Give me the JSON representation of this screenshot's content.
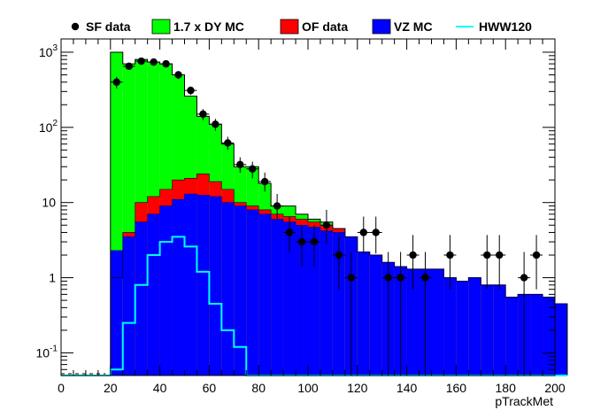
{
  "chart_data": {
    "type": "bar",
    "xlabel": "pTrackMet",
    "ylabel": "",
    "xlim": [
      0,
      200
    ],
    "ylim": [
      0.05,
      1500
    ],
    "yscale": "log",
    "xticks": [
      "0",
      "20",
      "40",
      "60",
      "80",
      "100",
      "120",
      "140",
      "160",
      "180",
      "200"
    ],
    "yticks": [
      {
        "base": "10",
        "exp": "-1",
        "value": 0.1
      },
      {
        "base": "1",
        "exp": "",
        "value": 1
      },
      {
        "base": "10",
        "exp": "",
        "value": 10
      },
      {
        "base": "10",
        "exp": "2",
        "value": 100
      },
      {
        "base": "10",
        "exp": "3",
        "value": 1000
      }
    ],
    "bin_width": 5,
    "bin_start": 20,
    "legend": [
      {
        "label": "SF data",
        "kind": "marker",
        "color": "#000000"
      },
      {
        "label": "1.7 x DY MC",
        "kind": "box",
        "color": "#00ff00"
      },
      {
        "label": "OF data",
        "kind": "box",
        "color": "#ff0000"
      },
      {
        "label": "VZ MC",
        "kind": "box",
        "color": "#0000ff"
      },
      {
        "label": "HWW120",
        "kind": "line",
        "color": "#00ffff"
      }
    ],
    "stack_total": [
      1000,
      700,
      800,
      740,
      700,
      500,
      260,
      140,
      110,
      60,
      30,
      30,
      18,
      9,
      9,
      7,
      6,
      5.5,
      4.5,
      3.5,
      2.2,
      2,
      1.6,
      1.4,
      1.3,
      1.3,
      1.3,
      1.0,
      0.9,
      1.0,
      0.8,
      0.8,
      0.55,
      0.6,
      0.6,
      0.55,
      0.45
    ],
    "data_overlay_red_top": [
      1,
      4,
      10,
      12,
      15,
      20,
      21,
      24,
      19,
      15,
      10,
      9,
      8,
      7,
      6.5,
      6,
      5.5,
      5,
      4.5,
      3.5,
      2.2,
      2,
      1.6,
      1.4,
      1.3,
      1.3,
      1.3,
      1.0,
      0.9,
      1.0,
      0.8,
      0.8,
      0.55,
      0.6,
      0.6,
      0.55,
      0.45
    ],
    "vz": [
      2.3,
      3.5,
      5.5,
      7,
      9,
      11,
      13,
      12.5,
      12,
      10,
      9,
      8,
      7,
      6,
      5.5,
      5,
      4.7,
      4.2,
      4,
      3.5,
      2.2,
      2,
      1.6,
      1.4,
      1.3,
      1.3,
      1.3,
      1.0,
      0.9,
      1.0,
      0.8,
      0.8,
      0.55,
      0.6,
      0.6,
      0.55,
      0.45
    ],
    "hww120": [
      0.06,
      0.25,
      0.8,
      2.0,
      3.0,
      3.5,
      2.6,
      1.2,
      0.45,
      0.2,
      0.12,
      0.05,
      0.04,
      0.04,
      0.04,
      0.04,
      0.04,
      0.04,
      0.04,
      0.04,
      0.04,
      0.04,
      0.04,
      0.04,
      0.04,
      0.04,
      0.04,
      0.04,
      0.04,
      0.04,
      0.04,
      0.04,
      0.04,
      0.04,
      0.04,
      0.04,
      0.04
    ],
    "sf_data": [
      {
        "x": 22.5,
        "y": 400,
        "ylo": 330,
        "yhi": 470
      },
      {
        "x": 27.5,
        "y": 650,
        "ylo": 580,
        "yhi": 720
      },
      {
        "x": 32.5,
        "y": 760,
        "ylo": 690,
        "yhi": 830
      },
      {
        "x": 37.5,
        "y": 740,
        "ylo": 670,
        "yhi": 810
      },
      {
        "x": 42.5,
        "y": 700,
        "ylo": 630,
        "yhi": 770
      },
      {
        "x": 47.5,
        "y": 500,
        "ylo": 440,
        "yhi": 560
      },
      {
        "x": 52.5,
        "y": 310,
        "ylo": 270,
        "yhi": 350
      },
      {
        "x": 57.5,
        "y": 150,
        "ylo": 125,
        "yhi": 175
      },
      {
        "x": 62.5,
        "y": 110,
        "ylo": 90,
        "yhi": 130
      },
      {
        "x": 67.5,
        "y": 62,
        "ylo": 50,
        "yhi": 75
      },
      {
        "x": 72.5,
        "y": 32,
        "ylo": 25,
        "yhi": 40
      },
      {
        "x": 77.5,
        "y": 28,
        "ylo": 21,
        "yhi": 35
      },
      {
        "x": 82.5,
        "y": 19,
        "ylo": 14,
        "yhi": 25
      },
      {
        "x": 87.5,
        "y": 9,
        "ylo": 6,
        "yhi": 13
      },
      {
        "x": 92.5,
        "y": 4,
        "ylo": 2.2,
        "yhi": 6.5
      },
      {
        "x": 97.5,
        "y": 3,
        "ylo": 1.4,
        "yhi": 5
      },
      {
        "x": 102.5,
        "y": 3,
        "ylo": 1.4,
        "yhi": 5
      },
      {
        "x": 107.5,
        "y": 5,
        "ylo": 2.8,
        "yhi": 8
      },
      {
        "x": 112.5,
        "y": 2,
        "ylo": 0.7,
        "yhi": 3.7
      },
      {
        "x": 117.5,
        "y": 1,
        "ylo": 0.05,
        "yhi": 2.2
      },
      {
        "x": 122.5,
        "y": 4,
        "ylo": 2.1,
        "yhi": 6.5
      },
      {
        "x": 127.5,
        "y": 4,
        "ylo": 2.1,
        "yhi": 6.5
      },
      {
        "x": 132.5,
        "y": 1,
        "ylo": 0.05,
        "yhi": 2.2
      },
      {
        "x": 137.5,
        "y": 1,
        "ylo": 0.05,
        "yhi": 2.2
      },
      {
        "x": 142.5,
        "y": 2,
        "ylo": 0.7,
        "yhi": 3.7
      },
      {
        "x": 147.5,
        "y": 1,
        "ylo": 0.05,
        "yhi": 2.2
      },
      {
        "x": 157.5,
        "y": 2,
        "ylo": 0.7,
        "yhi": 3.7
      },
      {
        "x": 172.5,
        "y": 2,
        "ylo": 0.7,
        "yhi": 3.7
      },
      {
        "x": 177.5,
        "y": 2,
        "ylo": 0.7,
        "yhi": 3.7
      },
      {
        "x": 187.5,
        "y": 1,
        "ylo": 0.05,
        "yhi": 2.2
      },
      {
        "x": 192.5,
        "y": 2,
        "ylo": 0.7,
        "yhi": 3.7
      }
    ]
  }
}
